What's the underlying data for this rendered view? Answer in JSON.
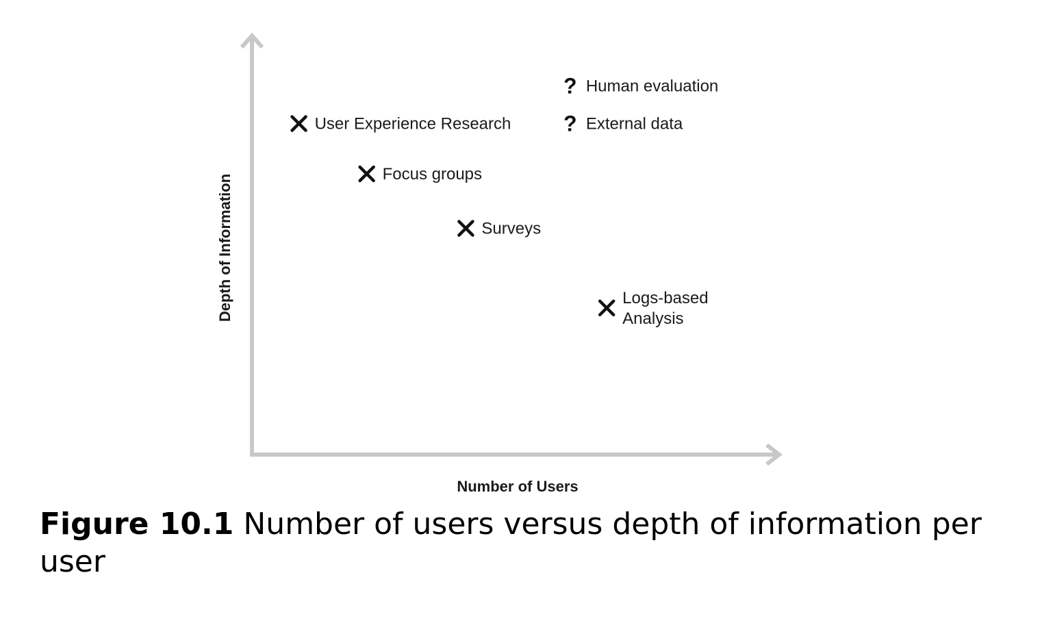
{
  "caption": {
    "number": "Figure 10.1",
    "text": "Number of users versus depth of information per user"
  },
  "chart_data": {
    "type": "scatter",
    "xlabel": "Number of Users",
    "ylabel": "Depth of Information",
    "grid": false,
    "axis_color": "#c8c8c8",
    "marker_color": "#111111",
    "xlim": [
      0,
      10
    ],
    "ylim": [
      0,
      10
    ],
    "points": [
      {
        "label": [
          "User Experience Research"
        ],
        "marker": "x",
        "x": 0.9,
        "y": 7.9
      },
      {
        "label": [
          "Focus groups"
        ],
        "marker": "x",
        "x": 2.2,
        "y": 6.7
      },
      {
        "label": [
          "Surveys"
        ],
        "marker": "x",
        "x": 4.1,
        "y": 5.4
      },
      {
        "label": [
          "Logs-based",
          "Analysis"
        ],
        "marker": "x",
        "x": 6.8,
        "y": 3.5
      },
      {
        "label": [
          "Human evaluation"
        ],
        "marker": "?",
        "x": 6.1,
        "y": 8.8
      },
      {
        "label": [
          "External data"
        ],
        "marker": "?",
        "x": 6.1,
        "y": 7.9
      }
    ]
  }
}
